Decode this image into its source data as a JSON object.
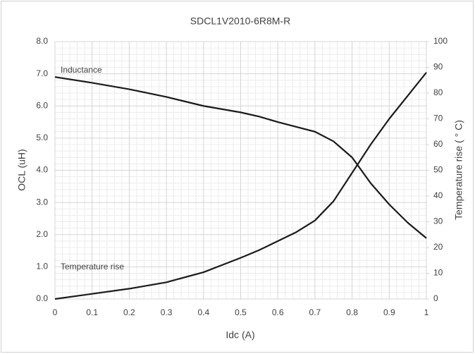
{
  "chart_data": {
    "type": "line",
    "title": "SDCL1V2010-6R8M-R",
    "x_label": "Idc (A)",
    "y_label": "OCL (uH)",
    "y2_label": "Temperature rise ( ° C)",
    "x": [
      0,
      0.1,
      0.2,
      0.3,
      0.4,
      0.5,
      0.55,
      0.6,
      0.65,
      0.7,
      0.75,
      0.8,
      0.85,
      0.9,
      0.95,
      1.0
    ],
    "series": [
      {
        "name": "Inductance",
        "color": "#1a1a1a",
        "axis": "y",
        "values": [
          6.9,
          6.72,
          6.52,
          6.28,
          6.0,
          5.8,
          5.67,
          5.5,
          5.35,
          5.2,
          4.9,
          4.4,
          3.6,
          2.94,
          2.37,
          1.89
        ]
      },
      {
        "name": "Temperature rise",
        "color": "#1a1a1a",
        "axis": "y2",
        "values": [
          0,
          2,
          4,
          6.5,
          10.4,
          16,
          19,
          22.5,
          26,
          30.5,
          38,
          49,
          60,
          70,
          79,
          88
        ]
      }
    ],
    "xlim": [
      0,
      1
    ],
    "xticks": [
      0,
      0.1,
      0.2,
      0.3,
      0.4,
      0.5,
      0.6,
      0.7,
      0.8,
      0.9,
      1
    ],
    "ylim": [
      0,
      8
    ],
    "yticks": [
      {
        "value": 0,
        "label": "0.0"
      },
      {
        "value": 1,
        "label": "1.0"
      },
      {
        "value": 2,
        "label": "2.0"
      },
      {
        "value": 3,
        "label": "3.0"
      },
      {
        "value": 4,
        "label": "4.0"
      },
      {
        "value": 5,
        "label": "5.0"
      },
      {
        "value": 6,
        "label": "6.0"
      },
      {
        "value": 7,
        "label": "7.0"
      },
      {
        "value": 8,
        "label": "8.0"
      }
    ],
    "y2lim": [
      0,
      100
    ],
    "y2ticks": [
      0,
      10,
      20,
      30,
      40,
      50,
      60,
      70,
      80,
      90,
      100
    ],
    "grid": true,
    "minor_grid": true,
    "minor_divisions": 5
  }
}
